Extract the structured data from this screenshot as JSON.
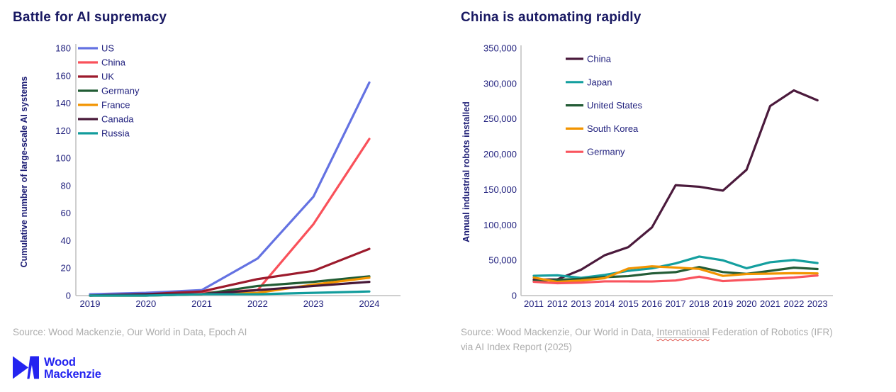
{
  "page": {
    "background": "#ffffff",
    "text_navy": "#21217e",
    "axis_gray": "#bfbfbf",
    "source_gray": "#acacac"
  },
  "chart_data": [
    {
      "type": "line",
      "title": "Battle for AI supremacy",
      "ylabel": "Cumulative number of large-scale AI systems",
      "xlabel": "",
      "source": "Source: Wood Mackenzie, Our World in Data, Epoch AI",
      "x": [
        2019,
        2020,
        2021,
        2022,
        2023,
        2024
      ],
      "ylim": [
        0,
        180
      ],
      "ytick_step": 20,
      "grid": false,
      "legend_position": "inside-top-left",
      "series": [
        {
          "name": "US",
          "color": "#6472e2",
          "values": [
            1,
            2,
            4,
            27,
            72,
            155
          ]
        },
        {
          "name": "China",
          "color": "#f9515a",
          "values": [
            0,
            1,
            2,
            4,
            52,
            114
          ]
        },
        {
          "name": "UK",
          "color": "#9c1a2c",
          "values": [
            0,
            1,
            3,
            12,
            18,
            34
          ]
        },
        {
          "name": "Germany",
          "color": "#215c34",
          "values": [
            0,
            0,
            1,
            7,
            10,
            14
          ]
        },
        {
          "name": "France",
          "color": "#f29400",
          "values": [
            0,
            0,
            1,
            2,
            8,
            13
          ]
        },
        {
          "name": "Canada",
          "color": "#471838",
          "values": [
            0,
            1,
            1,
            4,
            7,
            10
          ]
        },
        {
          "name": "Russia",
          "color": "#129c9c",
          "values": [
            0,
            0,
            1,
            1,
            2,
            3
          ]
        }
      ]
    },
    {
      "type": "line",
      "title": "China is automating rapidly",
      "ylabel": "Annual industrial robots installed",
      "xlabel": "",
      "source_prefix": "Source: Wood Mackenzie, Our World in Data, ",
      "source_underlined_word": "International",
      "source_suffix": " Federation of Robotics (IFR)",
      "source_line2": "via AI Index Report (2025)",
      "x": [
        2011,
        2012,
        2013,
        2014,
        2015,
        2016,
        2017,
        2018,
        2019,
        2020,
        2021,
        2022,
        2023
      ],
      "ylim": [
        0,
        350000
      ],
      "ytick_step": 50000,
      "grid": false,
      "legend_position": "inside-top-left",
      "series": [
        {
          "name": "China",
          "color": "#4b1a3c",
          "values": [
            22600,
            23000,
            36600,
            57100,
            68600,
            96500,
            156200,
            154000,
            148500,
            178000,
            268200,
            290300,
            276300
          ]
        },
        {
          "name": "Japan",
          "color": "#149f9f",
          "values": [
            28000,
            28700,
            25100,
            29300,
            35000,
            38600,
            45600,
            55200,
            49900,
            38700,
            47200,
            50400,
            46100
          ]
        },
        {
          "name": "United States",
          "color": "#235c36",
          "values": [
            20500,
            22400,
            23700,
            26200,
            27500,
            31400,
            33200,
            40400,
            33300,
            30800,
            35000,
            39500,
            37600
          ]
        },
        {
          "name": "South Korea",
          "color": "#f29400",
          "values": [
            25500,
            19400,
            21300,
            24700,
            38300,
            41400,
            39700,
            37800,
            27900,
            30500,
            31100,
            31700,
            31400
          ]
        },
        {
          "name": "Germany",
          "color": "#f9545e",
          "values": [
            19500,
            17500,
            18300,
            20100,
            20100,
            20000,
            21400,
            26700,
            20500,
            22300,
            23800,
            25600,
            28400
          ]
        }
      ]
    }
  ],
  "footer": {
    "logo_line1": "Wood",
    "logo_line2": "Mackenzie",
    "logo_color": "#2424f0"
  }
}
